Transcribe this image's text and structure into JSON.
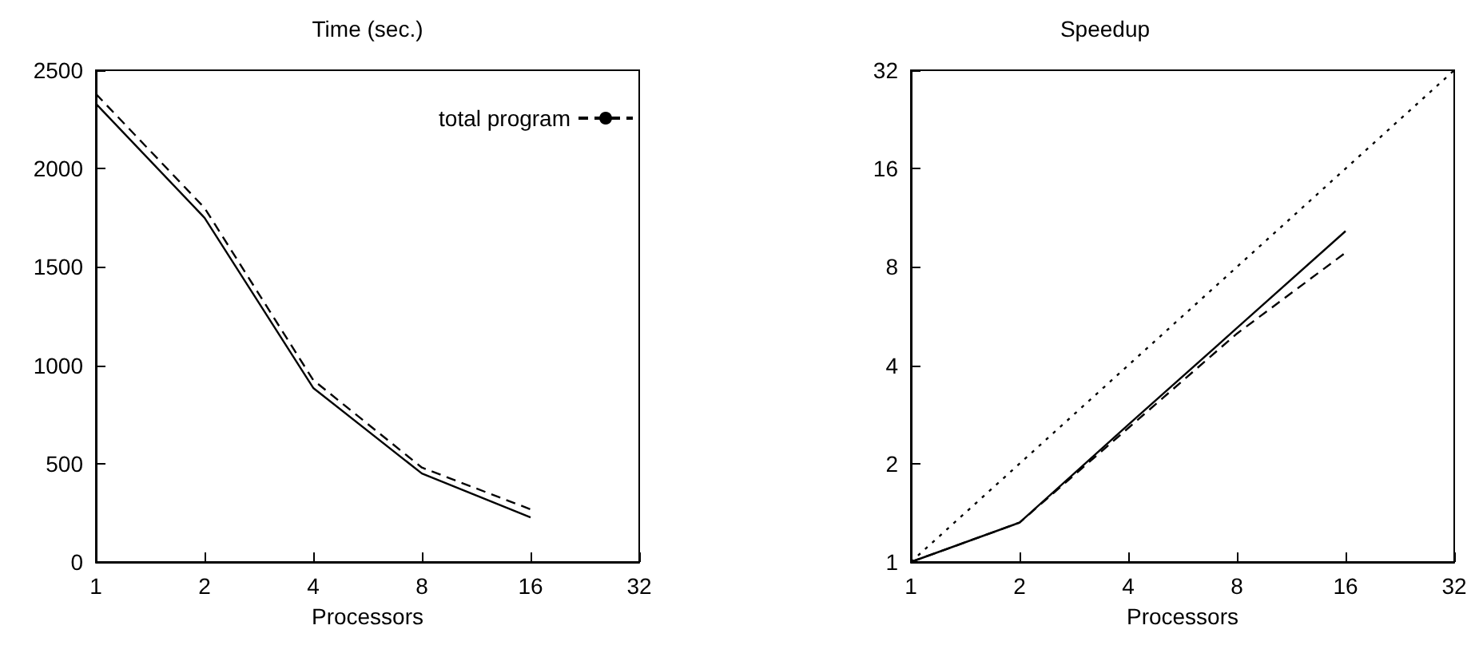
{
  "chart_data": [
    {
      "type": "line",
      "title": "Time (sec.)",
      "xlabel": "Processors",
      "log": "x",
      "xlim": [
        1,
        32
      ],
      "xticks": [
        1,
        2,
        4,
        8,
        16,
        32
      ],
      "ylim": [
        0,
        2500
      ],
      "yticks": [
        0,
        500,
        1000,
        1500,
        2000,
        2500
      ],
      "grid": false,
      "legend": "top right",
      "marker": "none",
      "x": [
        1,
        2,
        4,
        8,
        16
      ],
      "series": [
        {
          "color": "#000000",
          "line_style": "solid",
          "values": [
            2330,
            1750,
            885,
            450,
            227
          ]
        },
        {
          "name": "total program",
          "color": "#000000",
          "line_style": "dashed",
          "values": [
            2380,
            1800,
            925,
            480,
            268
          ]
        }
      ]
    },
    {
      "type": "line",
      "title": "Speedup",
      "xlabel": "Processors",
      "log": "xy",
      "xlim": [
        1,
        32
      ],
      "xticks": [
        1,
        2,
        4,
        8,
        16,
        32
      ],
      "ylim": [
        1,
        32
      ],
      "yticks": [
        1,
        2,
        4,
        8,
        16,
        32
      ],
      "grid": false,
      "legend": false,
      "marker": "none",
      "x": [
        1,
        2,
        4,
        8,
        16
      ],
      "series": [
        {
          "color": "#000000",
          "line_style": "solid",
          "values": [
            1,
            1.32,
            2.63,
            5.2,
            10.3
          ]
        },
        {
          "color": "#000000",
          "line_style": "dashed",
          "values": [
            1,
            1.32,
            2.57,
            5.0,
            8.85
          ]
        },
        {
          "color": "#000000",
          "line_style": "dotted",
          "x": [
            1,
            32
          ],
          "values": [
            1,
            32
          ]
        }
      ]
    }
  ]
}
